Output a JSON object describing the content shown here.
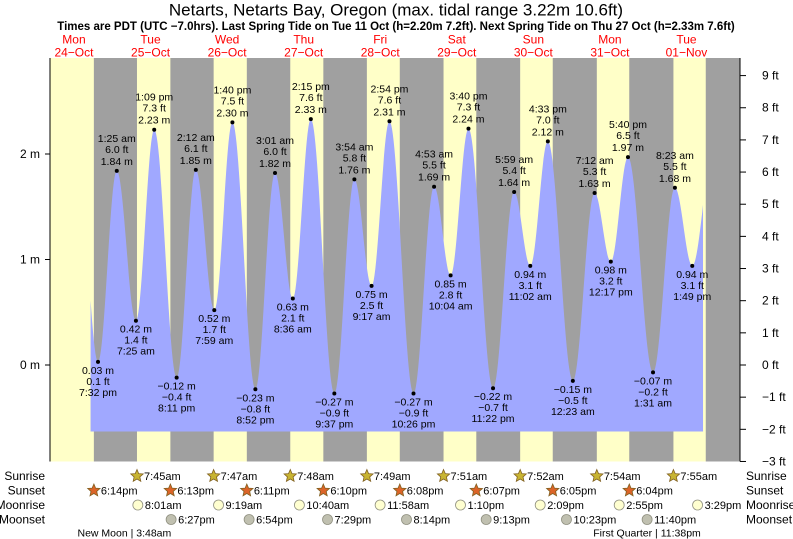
{
  "title": "Netarts, Netarts Bay, Oregon (max. tidal range 3.22m 10.6ft)",
  "subtitle": "Times are PDT (UTC −7.0hrs). Last Spring Tide on Tue 11 Oct (h=2.20m 7.2ft). Next Spring Tide on Thu 27 Oct (h=2.33m 7.6ft)",
  "colors": {
    "day": "#ffffc8",
    "night": "#a0a0a0",
    "water": "#a0a8ff",
    "dayLabel": "#ff0000",
    "sunrise": "#c8b432",
    "sunset": "#dc6428",
    "moonrise": "#ffffd0",
    "moonset": "#c0c0b0"
  },
  "chart_data": {
    "type": "area",
    "title": "Netarts, Netarts Bay, Oregon (max. tidal range 3.22m 10.6ft)",
    "ylabel_left": "m",
    "ylabel_right": "ft",
    "left_ticks": [
      {
        "v": 0,
        "label": "0 m"
      },
      {
        "v": 1,
        "label": "1 m"
      },
      {
        "v": 2,
        "label": "2 m"
      }
    ],
    "right_ticks": [
      "9 ft",
      "8 ft",
      "7 ft",
      "6 ft",
      "5 ft",
      "4 ft",
      "3 ft",
      "2 ft",
      "1 ft",
      "0 ft",
      "−1 ft",
      "−2 ft",
      "−3 ft"
    ],
    "right_tick_values": [
      9,
      8,
      7,
      6,
      5,
      4,
      3,
      2,
      1,
      0,
      -1,
      -2,
      -3
    ],
    "days": [
      {
        "dow": "Mon",
        "date": "24−Oct"
      },
      {
        "dow": "Tue",
        "date": "25−Oct"
      },
      {
        "dow": "Wed",
        "date": "26−Oct"
      },
      {
        "dow": "Thu",
        "date": "27−Oct"
      },
      {
        "dow": "Fri",
        "date": "28−Oct"
      },
      {
        "dow": "Sat",
        "date": "29−Oct"
      },
      {
        "dow": "Sun",
        "date": "30−Oct"
      },
      {
        "dow": "Mon",
        "date": "31−Oct"
      },
      {
        "dow": "Tue",
        "date": "01−Nov"
      }
    ],
    "tides": [
      {
        "d": 0,
        "time": "7:32 pm",
        "m": "0.03 m",
        "ft": "0.1 ft",
        "v": 0.03,
        "hl": "low"
      },
      {
        "d": 1,
        "time": "1:25 am",
        "m": "1.84 m",
        "ft": "6.0 ft",
        "v": 1.84,
        "hl": "high"
      },
      {
        "d": 1,
        "time": "7:25 am",
        "m": "0.42 m",
        "ft": "1.4 ft",
        "v": 0.42,
        "hl": "low"
      },
      {
        "d": 1,
        "time": "1:09 pm",
        "m": "2.23 m",
        "ft": "7.3 ft",
        "v": 2.23,
        "hl": "high"
      },
      {
        "d": 1,
        "time": "8:11 pm",
        "m": "−0.12 m",
        "ft": "−0.4 ft",
        "v": -0.12,
        "hl": "low"
      },
      {
        "d": 2,
        "time": "2:12 am",
        "m": "1.85 m",
        "ft": "6.1 ft",
        "v": 1.85,
        "hl": "high"
      },
      {
        "d": 2,
        "time": "7:59 am",
        "m": "0.52 m",
        "ft": "1.7 ft",
        "v": 0.52,
        "hl": "low"
      },
      {
        "d": 2,
        "time": "1:40 pm",
        "m": "2.30 m",
        "ft": "7.5 ft",
        "v": 2.3,
        "hl": "high"
      },
      {
        "d": 2,
        "time": "8:52 pm",
        "m": "−0.23 m",
        "ft": "−0.8 ft",
        "v": -0.23,
        "hl": "low"
      },
      {
        "d": 3,
        "time": "3:01 am",
        "m": "1.82 m",
        "ft": "6.0 ft",
        "v": 1.82,
        "hl": "high"
      },
      {
        "d": 3,
        "time": "8:36 am",
        "m": "0.63 m",
        "ft": "2.1 ft",
        "v": 0.63,
        "hl": "low"
      },
      {
        "d": 3,
        "time": "2:15 pm",
        "m": "2.33 m",
        "ft": "7.6 ft",
        "v": 2.33,
        "hl": "high"
      },
      {
        "d": 3,
        "time": "9:37 pm",
        "m": "−0.27 m",
        "ft": "−0.9 ft",
        "v": -0.27,
        "hl": "low"
      },
      {
        "d": 4,
        "time": "3:54 am",
        "m": "1.76 m",
        "ft": "5.8 ft",
        "v": 1.76,
        "hl": "high"
      },
      {
        "d": 4,
        "time": "9:17 am",
        "m": "0.75 m",
        "ft": "2.5 ft",
        "v": 0.75,
        "hl": "low"
      },
      {
        "d": 4,
        "time": "2:54 pm",
        "m": "2.31 m",
        "ft": "7.6 ft",
        "v": 2.31,
        "hl": "high"
      },
      {
        "d": 4,
        "time": "10:26 pm",
        "m": "−0.27 m",
        "ft": "−0.9 ft",
        "v": -0.27,
        "hl": "low"
      },
      {
        "d": 5,
        "time": "4:53 am",
        "m": "1.69 m",
        "ft": "5.5 ft",
        "v": 1.69,
        "hl": "high"
      },
      {
        "d": 5,
        "time": "10:04 am",
        "m": "0.85 m",
        "ft": "2.8 ft",
        "v": 0.85,
        "hl": "low"
      },
      {
        "d": 5,
        "time": "3:40 pm",
        "m": "2.24 m",
        "ft": "7.3 ft",
        "v": 2.24,
        "hl": "high"
      },
      {
        "d": 5,
        "time": "11:22 pm",
        "m": "−0.22 m",
        "ft": "−0.7 ft",
        "v": -0.22,
        "hl": "low"
      },
      {
        "d": 6,
        "time": "5:59 am",
        "m": "1.64 m",
        "ft": "5.4 ft",
        "v": 1.64,
        "hl": "high"
      },
      {
        "d": 6,
        "time": "11:02 am",
        "m": "0.94 m",
        "ft": "3.1 ft",
        "v": 0.94,
        "hl": "low"
      },
      {
        "d": 6,
        "time": "4:33 pm",
        "m": "2.12 m",
        "ft": "7.0 ft",
        "v": 2.12,
        "hl": "high"
      },
      {
        "d": 7,
        "time": "12:23 am",
        "m": "−0.15 m",
        "ft": "−0.5 ft",
        "v": -0.15,
        "hl": "low"
      },
      {
        "d": 7,
        "time": "7:12 am",
        "m": "1.63 m",
        "ft": "5.3 ft",
        "v": 1.63,
        "hl": "high"
      },
      {
        "d": 7,
        "time": "12:17 pm",
        "m": "0.98 m",
        "ft": "3.2 ft",
        "v": 0.98,
        "hl": "low"
      },
      {
        "d": 7,
        "time": "5:40 pm",
        "m": "1.97 m",
        "ft": "6.5 ft",
        "v": 1.97,
        "hl": "high"
      },
      {
        "d": 8,
        "time": "1:31 am",
        "m": "−0.07 m",
        "ft": "−0.2 ft",
        "v": -0.07,
        "hl": "low"
      },
      {
        "d": 8,
        "time": "8:23 am",
        "m": "1.68 m",
        "ft": "5.5 ft",
        "v": 1.68,
        "hl": "high"
      },
      {
        "d": 8,
        "time": "1:49 pm",
        "m": "0.94 m",
        "ft": "3.1 ft",
        "v": 0.94,
        "hl": "low"
      }
    ]
  },
  "rows": {
    "labels": {
      "sunrise": "Sunrise",
      "sunset": "Sunset",
      "moonrise": "Moonrise",
      "moonset": "Moonset"
    },
    "sunrise": [
      {
        "d": 1,
        "t": "7:45am"
      },
      {
        "d": 2,
        "t": "7:47am"
      },
      {
        "d": 3,
        "t": "7:48am"
      },
      {
        "d": 4,
        "t": "7:49am"
      },
      {
        "d": 5,
        "t": "7:51am"
      },
      {
        "d": 6,
        "t": "7:52am"
      },
      {
        "d": 7,
        "t": "7:54am"
      },
      {
        "d": 8,
        "t": "7:55am"
      }
    ],
    "sunset": [
      {
        "d": 0,
        "t": "6:14pm"
      },
      {
        "d": 1,
        "t": "6:13pm"
      },
      {
        "d": 2,
        "t": "6:11pm"
      },
      {
        "d": 3,
        "t": "6:10pm"
      },
      {
        "d": 4,
        "t": "6:08pm"
      },
      {
        "d": 5,
        "t": "6:07pm"
      },
      {
        "d": 6,
        "t": "6:05pm"
      },
      {
        "d": 7,
        "t": "6:04pm"
      }
    ],
    "moonrise": [
      {
        "d": 1,
        "t": "8:01am"
      },
      {
        "d": 2,
        "t": "9:19am"
      },
      {
        "d": 3,
        "t": "10:40am"
      },
      {
        "d": 4,
        "t": "11:58am"
      },
      {
        "d": 5,
        "t": "1:10pm"
      },
      {
        "d": 6,
        "t": "2:09pm"
      },
      {
        "d": 7,
        "t": "2:55pm"
      },
      {
        "d": 8,
        "t": "3:29pm"
      }
    ],
    "moonset": [
      {
        "d": 1,
        "t": "6:27pm"
      },
      {
        "d": 2,
        "t": "6:54pm"
      },
      {
        "d": 3,
        "t": "7:29pm"
      },
      {
        "d": 4,
        "t": "8:14pm"
      },
      {
        "d": 5,
        "t": "9:13pm"
      },
      {
        "d": 6,
        "t": "10:23pm"
      },
      {
        "d": 7,
        "t": "11:40pm"
      }
    ],
    "phases": [
      {
        "d": 1,
        "t": "3:48am",
        "label": "New Moon | 3:48am"
      },
      {
        "d": 7,
        "t": "11:38pm",
        "label": "First Quarter | 11:38pm"
      }
    ]
  }
}
